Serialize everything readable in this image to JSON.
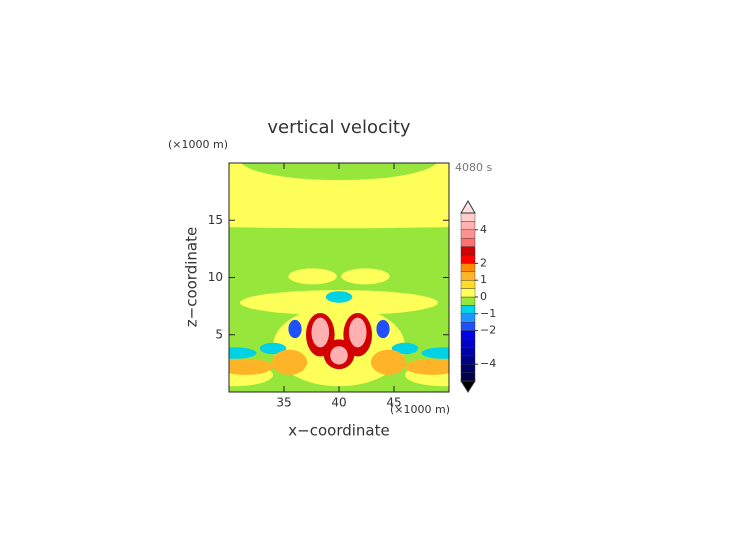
{
  "chart_data": {
    "type": "contour",
    "title": "vertical velocity",
    "xlabel": "x−coordinate",
    "ylabel": "z−coordinate",
    "x_unit": "(×1000 m)",
    "y_unit": "(×1000 m)",
    "time_label": "4080 s",
    "xlim": [
      30,
      50
    ],
    "xticks": [
      35,
      40,
      45
    ],
    "ylim": [
      0,
      20
    ],
    "yticks": [
      5,
      10,
      15
    ],
    "colorbar": {
      "levels": [
        -5,
        -4.5,
        -4,
        -3.5,
        -3,
        -2.5,
        -2,
        -1.5,
        -1,
        -0.5,
        0,
        0.5,
        1,
        1.5,
        2,
        2.5,
        3,
        3.5,
        4,
        4.5,
        5
      ],
      "colors": [
        "#00004a",
        "#000068",
        "#000088",
        "#0000a8",
        "#0000c8",
        "#0000e8",
        "#1e50ff",
        "#1e96ff",
        "#00d2e6",
        "#96e63c",
        "#ffff5a",
        "#ffdc28",
        "#ffb428",
        "#ff8c00",
        "#ff0000",
        "#d20000",
        "#ff7070",
        "#ff9090",
        "#ffb0b0",
        "#ffcccc"
      ],
      "over_color": "#ffe0e0",
      "under_color": "#000000",
      "ticks": [
        {
          "value": 4,
          "label": "4"
        },
        {
          "value": 2,
          "label": "2"
        },
        {
          "value": 1,
          "label": "1"
        },
        {
          "value": 0,
          "label": "0"
        },
        {
          "value": -1,
          "label": "−1"
        },
        {
          "value": -2,
          "label": "−2"
        },
        {
          "value": -4,
          "label": "−4"
        }
      ]
    },
    "field": {
      "background": -0.2,
      "blobs": [
        {
          "x": 40,
          "z": 17.5,
          "rx": 40,
          "rz": 3.2,
          "value": 0.2
        },
        {
          "x": 40,
          "z": 20.3,
          "rx": 9,
          "rz": 1.8,
          "value": -0.2
        },
        {
          "x": 40,
          "z": 7.8,
          "rx": 9,
          "rz": 1.1,
          "value": 0.2
        },
        {
          "x": 37.6,
          "z": 10.1,
          "rx": 2.2,
          "rz": 0.7,
          "value": 0.2
        },
        {
          "x": 42.4,
          "z": 10.1,
          "rx": 2.2,
          "rz": 0.7,
          "value": 0.2
        },
        {
          "x": 40,
          "z": 4,
          "rx": 6,
          "rz": 3.5,
          "value": 0.3
        },
        {
          "x": 40,
          "z": 8.3,
          "rx": 1.2,
          "rz": 0.5,
          "value": -0.8
        },
        {
          "x": 30.5,
          "z": 1.5,
          "rx": 3.5,
          "rz": 1,
          "value": 0.3
        },
        {
          "x": 49.5,
          "z": 1.5,
          "rx": 3.5,
          "rz": 1,
          "value": 0.3
        },
        {
          "x": 31.5,
          "z": 2.2,
          "rx": 2.5,
          "rz": 0.7,
          "value": 1.2
        },
        {
          "x": 48.5,
          "z": 2.2,
          "rx": 2.5,
          "rz": 0.7,
          "value": 1.2
        },
        {
          "x": 30.5,
          "z": 3.4,
          "rx": 2,
          "rz": 0.5,
          "value": -0.8
        },
        {
          "x": 49.5,
          "z": 3.4,
          "rx": 2,
          "rz": 0.5,
          "value": -0.8
        },
        {
          "x": 34,
          "z": 3.8,
          "rx": 1.2,
          "rz": 0.5,
          "value": -0.8
        },
        {
          "x": 46,
          "z": 3.8,
          "rx": 1.2,
          "rz": 0.5,
          "value": -0.8
        },
        {
          "x": 35.5,
          "z": 2.6,
          "rx": 1.6,
          "rz": 1.1,
          "value": 1.2
        },
        {
          "x": 44.5,
          "z": 2.6,
          "rx": 1.6,
          "rz": 1.1,
          "value": 1.2
        },
        {
          "x": 36,
          "z": 5.5,
          "rx": 0.6,
          "rz": 0.8,
          "value": -1.8
        },
        {
          "x": 44,
          "z": 5.5,
          "rx": 0.6,
          "rz": 0.8,
          "value": -1.8
        },
        {
          "x": 38.3,
          "z": 5,
          "rx": 1.3,
          "rz": 1.9,
          "value": 2.5
        },
        {
          "x": 41.7,
          "z": 5,
          "rx": 1.3,
          "rz": 1.9,
          "value": 2.5
        },
        {
          "x": 40,
          "z": 3.3,
          "rx": 1.4,
          "rz": 1.3,
          "value": 2.5
        },
        {
          "x": 38.3,
          "z": 5.2,
          "rx": 0.8,
          "rz": 1.3,
          "value": 4.3
        },
        {
          "x": 41.7,
          "z": 5.2,
          "rx": 0.8,
          "rz": 1.3,
          "value": 4.3
        },
        {
          "x": 40,
          "z": 3.2,
          "rx": 0.8,
          "rz": 0.8,
          "value": 4.3
        }
      ]
    }
  }
}
